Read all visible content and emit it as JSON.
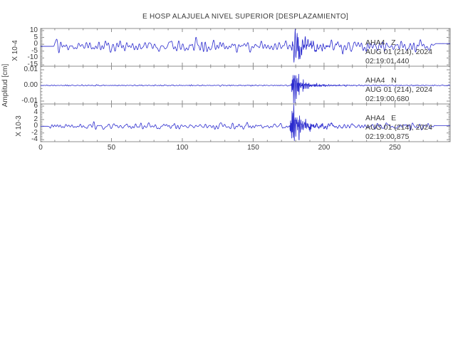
{
  "title": "E HOSP ALAJUELA NIVEL SUPERIOR [DESPLAZAMIENTO]",
  "y_axis_label": "Amplitud [cm]",
  "chart_data": {
    "type": "line",
    "title": "E HOSP ALAJUELA NIVEL SUPERIOR [DESPLAZAMIENTO]",
    "xlabel": "",
    "ylabel": "Amplitud [cm]",
    "xlim": [
      0,
      289
    ],
    "x_major_ticks": [
      0,
      50,
      100,
      150,
      200,
      250
    ],
    "x_major_tick_labels": [
      "0",
      "50",
      "100",
      "150",
      "200",
      "250"
    ],
    "x_minor_step": 10,
    "legend": "none",
    "grid": false,
    "trace_color": "#2a2ace",
    "frame_color": "#8c8c8c",
    "text_color": "#3a3a3a",
    "panels": [
      {
        "station": "AHA4",
        "component": "Z",
        "label": "AHA4   Z",
        "date": "AUG 01 (214), 2024",
        "time": "02:19:01.440",
        "scale_label": "X 10-4",
        "units": "cm x 10^-4",
        "ylim": [
          -16.0,
          11.5
        ],
        "y_tick_values": [
          10,
          5,
          0,
          -5,
          -10,
          -15
        ],
        "y_tick_labels": [
          "10",
          "5",
          "0",
          "-5",
          "-10",
          "-15"
        ],
        "y_minor_step": 1,
        "baseline": -1.5,
        "end_level": 0.5,
        "noise_amp": 4.0,
        "flat_until": 9,
        "flat_after": 275,
        "noise_band": [
          0.04,
          0.5
        ],
        "seed": 3,
        "event": {
          "onset": 176.5,
          "rise": 1.5,
          "peak": 12,
          "neg_scale": 1.15,
          "decay": 7,
          "tail_amp": 1.2,
          "tail_decay": 30,
          "carrier_band": [
            0.5,
            1.6
          ]
        }
      },
      {
        "station": "AHA4",
        "component": "N",
        "label": "AHA4   N",
        "date": "AUG 01 (214), 2024",
        "time": "02:19:00.680",
        "scale_label": "",
        "units": "cm",
        "ylim": [
          -0.01182,
          0.01227
        ],
        "y_tick_values": [
          0.01,
          0.0,
          -0.01
        ],
        "y_tick_labels": [
          "0.01",
          "0.00",
          "-0.01"
        ],
        "y_minor_step": 0.002,
        "baseline": 0,
        "end_level": 0,
        "noise_amp": 0.00035,
        "flat_until": 0,
        "flat_after": 999,
        "noise_band": [
          0.15,
          0.9
        ],
        "seed": 17,
        "event": {
          "onset": 176.8,
          "rise": 0.8,
          "peak": 0.014,
          "neg_scale": 1.05,
          "decay": 4.5,
          "tail_amp": 0.0012,
          "tail_decay": 22,
          "carrier_band": [
            0.9,
            2.4
          ]
        }
      },
      {
        "station": "AHA4",
        "component": "E",
        "label": "AHA4   E",
        "date": "AUG 01 (214), 2024",
        "time": "02:19:00.875",
        "scale_label": "X 10-3",
        "units": "cm x 10^-3",
        "ylim": [
          -4.6,
          6.65
        ],
        "y_tick_values": [
          6,
          4,
          2,
          0,
          -2,
          -4
        ],
        "y_tick_labels": [
          "6",
          "4",
          "2",
          "0",
          "-2",
          "-4"
        ],
        "y_minor_step": 0.5,
        "baseline": 0,
        "end_level": 0.2,
        "noise_amp": 0.85,
        "flat_until": 5,
        "flat_after": 276,
        "noise_band": [
          0.05,
          0.55
        ],
        "seed": 29,
        "event": {
          "onset": 175.8,
          "rise": 1.3,
          "peak": 7,
          "neg_scale": 0.72,
          "decay": 5.5,
          "tail_amp": 1.3,
          "tail_decay": 16,
          "carrier_band": [
            0.8,
            2.2
          ]
        }
      }
    ]
  }
}
